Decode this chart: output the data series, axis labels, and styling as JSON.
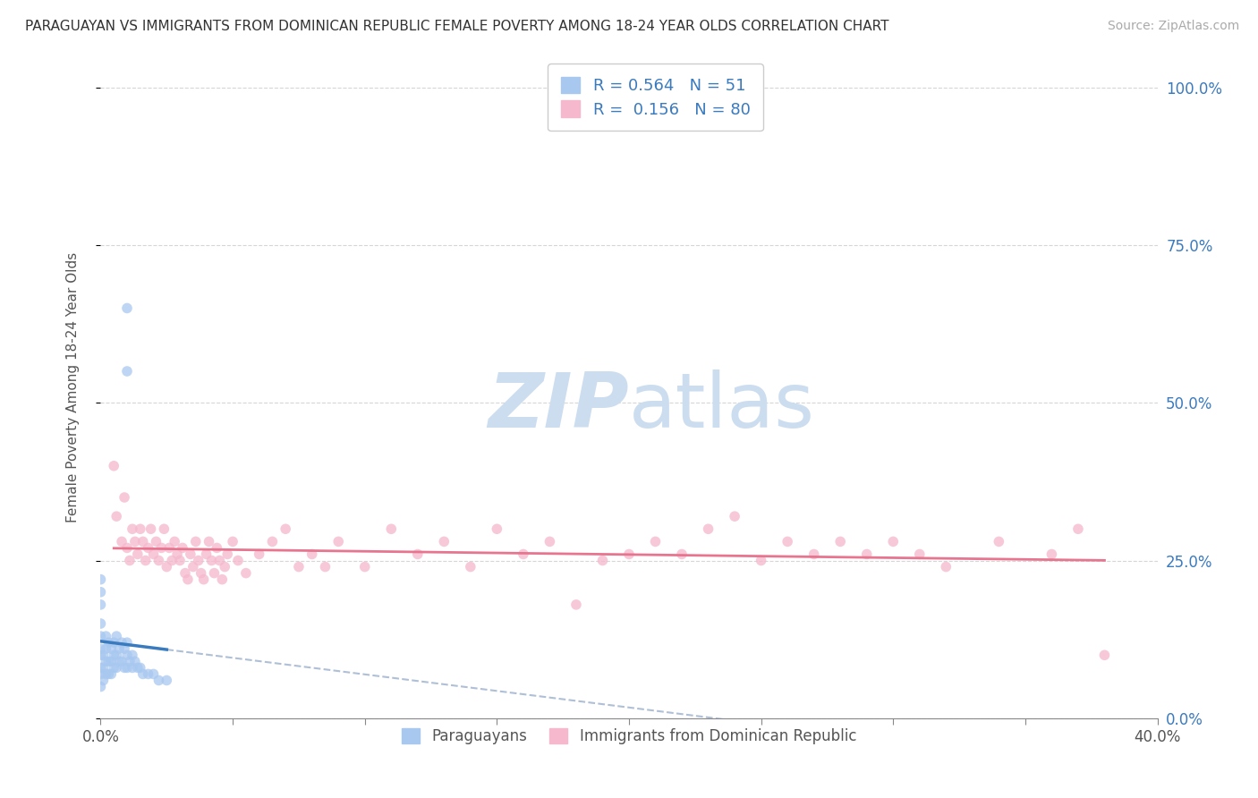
{
  "title": "PARAGUAYAN VS IMMIGRANTS FROM DOMINICAN REPUBLIC FEMALE POVERTY AMONG 18-24 YEAR OLDS CORRELATION CHART",
  "source": "Source: ZipAtlas.com",
  "ylabel": "Female Poverty Among 18-24 Year Olds",
  "xmin": 0.0,
  "xmax": 0.4,
  "ymin": 0.0,
  "ymax": 1.05,
  "yticks": [
    0.0,
    0.25,
    0.5,
    0.75,
    1.0
  ],
  "ytick_labels": [
    "0.0%",
    "25.0%",
    "50.0%",
    "75.0%",
    "100.0%"
  ],
  "xticks": [
    0.0,
    0.05,
    0.1,
    0.15,
    0.2,
    0.25,
    0.3,
    0.35,
    0.4
  ],
  "xtick_labels": [
    "0.0%",
    "",
    "",
    "",
    "",
    "",
    "",
    "",
    "40.0%"
  ],
  "blue_R": 0.564,
  "blue_N": 51,
  "pink_R": 0.156,
  "pink_N": 80,
  "blue_color": "#a8c8f0",
  "pink_color": "#f5b8cc",
  "blue_line_color": "#3a7abf",
  "pink_line_color": "#e8758f",
  "dash_line_color": "#9ab0cc",
  "background_color": "#ffffff",
  "watermark_color": "#ccddf0",
  "blue_scatter_x": [
    0.0,
    0.0,
    0.0,
    0.0,
    0.0,
    0.0,
    0.0,
    0.0,
    0.0,
    0.0,
    0.001,
    0.001,
    0.001,
    0.002,
    0.002,
    0.002,
    0.002,
    0.003,
    0.003,
    0.003,
    0.004,
    0.004,
    0.004,
    0.005,
    0.005,
    0.005,
    0.006,
    0.006,
    0.006,
    0.007,
    0.007,
    0.008,
    0.008,
    0.009,
    0.009,
    0.01,
    0.01,
    0.01,
    0.011,
    0.012,
    0.012,
    0.013,
    0.014,
    0.015,
    0.016,
    0.018,
    0.02,
    0.022,
    0.025,
    0.01,
    0.01
  ],
  "blue_scatter_y": [
    0.05,
    0.07,
    0.08,
    0.1,
    0.11,
    0.13,
    0.15,
    0.18,
    0.2,
    0.22,
    0.06,
    0.08,
    0.1,
    0.07,
    0.09,
    0.11,
    0.13,
    0.07,
    0.09,
    0.12,
    0.07,
    0.09,
    0.11,
    0.08,
    0.1,
    0.12,
    0.08,
    0.1,
    0.13,
    0.09,
    0.11,
    0.09,
    0.12,
    0.08,
    0.11,
    0.08,
    0.1,
    0.12,
    0.09,
    0.08,
    0.1,
    0.09,
    0.08,
    0.08,
    0.07,
    0.07,
    0.07,
    0.06,
    0.06,
    0.55,
    0.65
  ],
  "pink_scatter_x": [
    0.005,
    0.006,
    0.008,
    0.009,
    0.01,
    0.011,
    0.012,
    0.013,
    0.014,
    0.015,
    0.016,
    0.017,
    0.018,
    0.019,
    0.02,
    0.021,
    0.022,
    0.023,
    0.024,
    0.025,
    0.026,
    0.027,
    0.028,
    0.029,
    0.03,
    0.031,
    0.032,
    0.033,
    0.034,
    0.035,
    0.036,
    0.037,
    0.038,
    0.039,
    0.04,
    0.041,
    0.042,
    0.043,
    0.044,
    0.045,
    0.046,
    0.047,
    0.048,
    0.05,
    0.052,
    0.055,
    0.06,
    0.065,
    0.07,
    0.075,
    0.08,
    0.085,
    0.09,
    0.1,
    0.11,
    0.12,
    0.13,
    0.14,
    0.15,
    0.16,
    0.17,
    0.18,
    0.19,
    0.2,
    0.21,
    0.22,
    0.23,
    0.24,
    0.25,
    0.26,
    0.27,
    0.28,
    0.29,
    0.3,
    0.31,
    0.32,
    0.34,
    0.36,
    0.37,
    0.38
  ],
  "pink_scatter_y": [
    0.4,
    0.32,
    0.28,
    0.35,
    0.27,
    0.25,
    0.3,
    0.28,
    0.26,
    0.3,
    0.28,
    0.25,
    0.27,
    0.3,
    0.26,
    0.28,
    0.25,
    0.27,
    0.3,
    0.24,
    0.27,
    0.25,
    0.28,
    0.26,
    0.25,
    0.27,
    0.23,
    0.22,
    0.26,
    0.24,
    0.28,
    0.25,
    0.23,
    0.22,
    0.26,
    0.28,
    0.25,
    0.23,
    0.27,
    0.25,
    0.22,
    0.24,
    0.26,
    0.28,
    0.25,
    0.23,
    0.26,
    0.28,
    0.3,
    0.24,
    0.26,
    0.24,
    0.28,
    0.24,
    0.3,
    0.26,
    0.28,
    0.24,
    0.3,
    0.26,
    0.28,
    0.18,
    0.25,
    0.26,
    0.28,
    0.26,
    0.3,
    0.32,
    0.25,
    0.28,
    0.26,
    0.28,
    0.26,
    0.28,
    0.26,
    0.24,
    0.28,
    0.26,
    0.3,
    0.1
  ]
}
